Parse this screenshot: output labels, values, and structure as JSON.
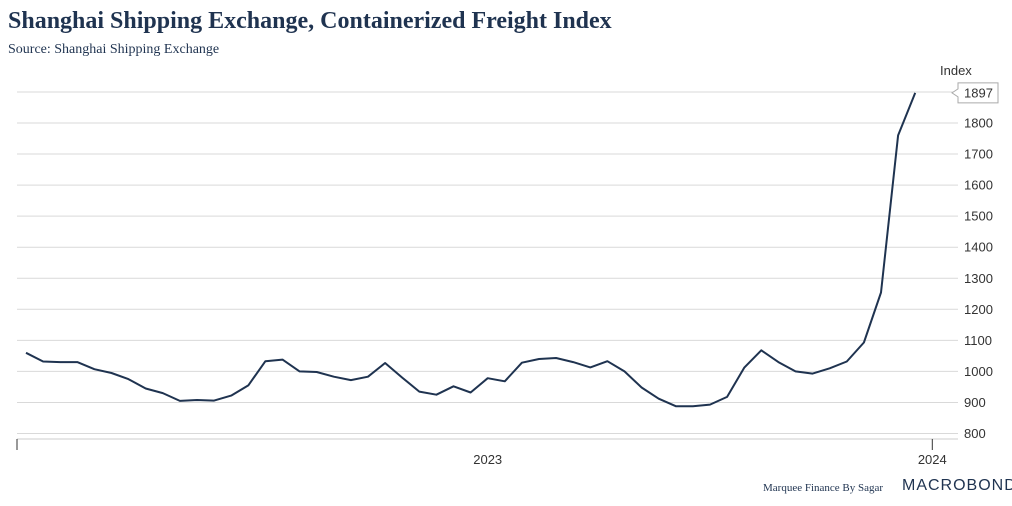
{
  "header": {
    "title": "Shanghai Shipping Exchange, Containerized Freight Index",
    "source": "Source: Shanghai Shipping Exchange"
  },
  "footer": {
    "credit": "Marquee Finance By Sagar",
    "brand": "MACROBOND"
  },
  "colors": {
    "line": "#1f3350",
    "grid": "#d9d9d9",
    "text": "#333333"
  },
  "chart_data": {
    "type": "line",
    "title": "Shanghai Shipping Exchange, Containerized Freight Index",
    "subtitle": "Source: Shanghai Shipping Exchange",
    "ylabel": "Index",
    "ylim": [
      780,
      1900
    ],
    "yticks": [
      800,
      900,
      1000,
      1100,
      1200,
      1300,
      1400,
      1500,
      1600,
      1700,
      1800
    ],
    "xticks": [
      {
        "label": "2023",
        "x": 27
      },
      {
        "label": "2024",
        "x": 53
      }
    ],
    "last_value_label": "1897",
    "grid": true,
    "series": [
      {
        "values": [
          {
            "x": 0,
            "y": 1060
          },
          {
            "x": 1,
            "y": 1032
          },
          {
            "x": 2,
            "y": 1030
          },
          {
            "x": 3,
            "y": 1030
          },
          {
            "x": 4,
            "y": 1007
          },
          {
            "x": 5,
            "y": 995
          },
          {
            "x": 6,
            "y": 975
          },
          {
            "x": 7,
            "y": 945
          },
          {
            "x": 8,
            "y": 930
          },
          {
            "x": 9,
            "y": 905
          },
          {
            "x": 10,
            "y": 908
          },
          {
            "x": 11,
            "y": 906
          },
          {
            "x": 12,
            "y": 922
          },
          {
            "x": 13,
            "y": 955
          },
          {
            "x": 14,
            "y": 1033
          },
          {
            "x": 15,
            "y": 1038
          },
          {
            "x": 16,
            "y": 1000
          },
          {
            "x": 17,
            "y": 998
          },
          {
            "x": 18,
            "y": 983
          },
          {
            "x": 19,
            "y": 972
          },
          {
            "x": 20,
            "y": 983
          },
          {
            "x": 21,
            "y": 1027
          },
          {
            "x": 22,
            "y": 980
          },
          {
            "x": 23,
            "y": 935
          },
          {
            "x": 24,
            "y": 925
          },
          {
            "x": 25,
            "y": 952
          },
          {
            "x": 26,
            "y": 932
          },
          {
            "x": 27,
            "y": 978
          },
          {
            "x": 28,
            "y": 968
          },
          {
            "x": 29,
            "y": 1028
          },
          {
            "x": 30,
            "y": 1040
          },
          {
            "x": 31,
            "y": 1043
          },
          {
            "x": 32,
            "y": 1030
          },
          {
            "x": 33,
            "y": 1013
          },
          {
            "x": 34,
            "y": 1033
          },
          {
            "x": 35,
            "y": 1000
          },
          {
            "x": 36,
            "y": 948
          },
          {
            "x": 37,
            "y": 912
          },
          {
            "x": 38,
            "y": 888
          },
          {
            "x": 39,
            "y": 888
          },
          {
            "x": 40,
            "y": 893
          },
          {
            "x": 41,
            "y": 918
          },
          {
            "x": 42,
            "y": 1012
          },
          {
            "x": 43,
            "y": 1068
          },
          {
            "x": 44,
            "y": 1030
          },
          {
            "x": 45,
            "y": 1000
          },
          {
            "x": 46,
            "y": 993
          },
          {
            "x": 47,
            "y": 1010
          },
          {
            "x": 48,
            "y": 1032
          },
          {
            "x": 49,
            "y": 1093
          },
          {
            "x": 50,
            "y": 1254
          },
          {
            "x": 51,
            "y": 1760
          },
          {
            "x": 52,
            "y": 1897
          }
        ]
      }
    ]
  }
}
